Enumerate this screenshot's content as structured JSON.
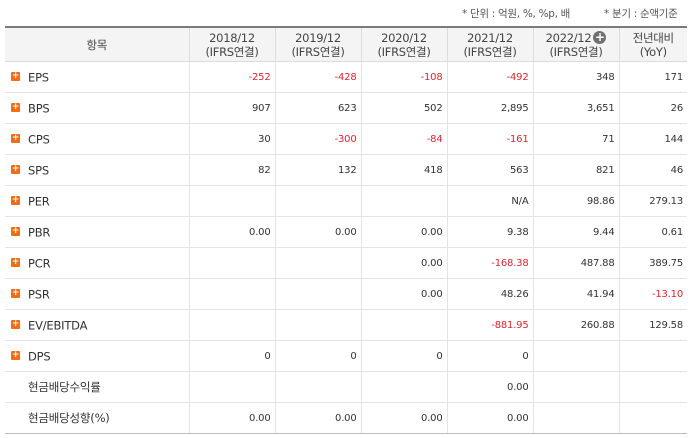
{
  "notes": {
    "unit": "* 단위 : 억원, %, %p, 배",
    "basis": "* 분기 : 순액기준"
  },
  "header": {
    "item": "항목",
    "periods": [
      {
        "year": "2018/12",
        "basis": "(IFRS연결)"
      },
      {
        "year": "2019/12",
        "basis": "(IFRS연결)"
      },
      {
        "year": "2020/12",
        "basis": "(IFRS연결)"
      },
      {
        "year": "2021/12",
        "basis": "(IFRS연결)"
      },
      {
        "year": "2022/12",
        "basis": "(IFRS연결)"
      }
    ],
    "yoy_line1": "전년대비",
    "yoy_line2": "(YoY)",
    "add_icon": "plus-circle-icon"
  },
  "rows": [
    {
      "label": "EPS",
      "expandable": true,
      "cells": [
        "-252",
        "-428",
        "-108",
        "-492",
        "348",
        "171"
      ],
      "neg": [
        true,
        true,
        true,
        true,
        false,
        false
      ]
    },
    {
      "label": "BPS",
      "expandable": true,
      "cells": [
        "907",
        "623",
        "502",
        "2,895",
        "3,651",
        "26"
      ],
      "neg": [
        false,
        false,
        false,
        false,
        false,
        false
      ]
    },
    {
      "label": "CPS",
      "expandable": true,
      "cells": [
        "30",
        "-300",
        "-84",
        "-161",
        "71",
        "144"
      ],
      "neg": [
        false,
        true,
        true,
        true,
        false,
        false
      ]
    },
    {
      "label": "SPS",
      "expandable": true,
      "cells": [
        "82",
        "132",
        "418",
        "563",
        "821",
        "46"
      ],
      "neg": [
        false,
        false,
        false,
        false,
        false,
        false
      ]
    },
    {
      "label": "PER",
      "expandable": true,
      "cells": [
        "",
        "",
        "",
        "N/A",
        "98.86",
        "279.13"
      ],
      "neg": [
        false,
        false,
        false,
        false,
        false,
        false
      ]
    },
    {
      "label": "PBR",
      "expandable": true,
      "cells": [
        "0.00",
        "0.00",
        "0.00",
        "9.38",
        "9.44",
        "0.61"
      ],
      "neg": [
        false,
        false,
        false,
        false,
        false,
        false
      ]
    },
    {
      "label": "PCR",
      "expandable": true,
      "cells": [
        "",
        "",
        "0.00",
        "-168.38",
        "487.88",
        "389.75"
      ],
      "neg": [
        false,
        false,
        false,
        true,
        false,
        false
      ]
    },
    {
      "label": "PSR",
      "expandable": true,
      "cells": [
        "",
        "",
        "0.00",
        "48.26",
        "41.94",
        "-13.10"
      ],
      "neg": [
        false,
        false,
        false,
        false,
        false,
        true
      ]
    },
    {
      "label": "EV/EBITDA",
      "expandable": true,
      "cells": [
        "",
        "",
        "",
        "-881.95",
        "260.88",
        "129.58"
      ],
      "neg": [
        false,
        false,
        false,
        true,
        false,
        false
      ]
    },
    {
      "label": "DPS",
      "expandable": true,
      "cells": [
        "0",
        "0",
        "0",
        "0",
        "",
        ""
      ],
      "neg": [
        false,
        false,
        false,
        false,
        false,
        false
      ]
    },
    {
      "label": "현금배당수익률",
      "expandable": false,
      "cells": [
        "",
        "",
        "",
        "0.00",
        "",
        ""
      ],
      "neg": [
        false,
        false,
        false,
        false,
        false,
        false
      ]
    },
    {
      "label": "현금배당성향(%)",
      "expandable": false,
      "cells": [
        "0.00",
        "0.00",
        "0.00",
        "0.00",
        "",
        ""
      ],
      "neg": [
        false,
        false,
        false,
        false,
        false,
        false
      ]
    }
  ]
}
